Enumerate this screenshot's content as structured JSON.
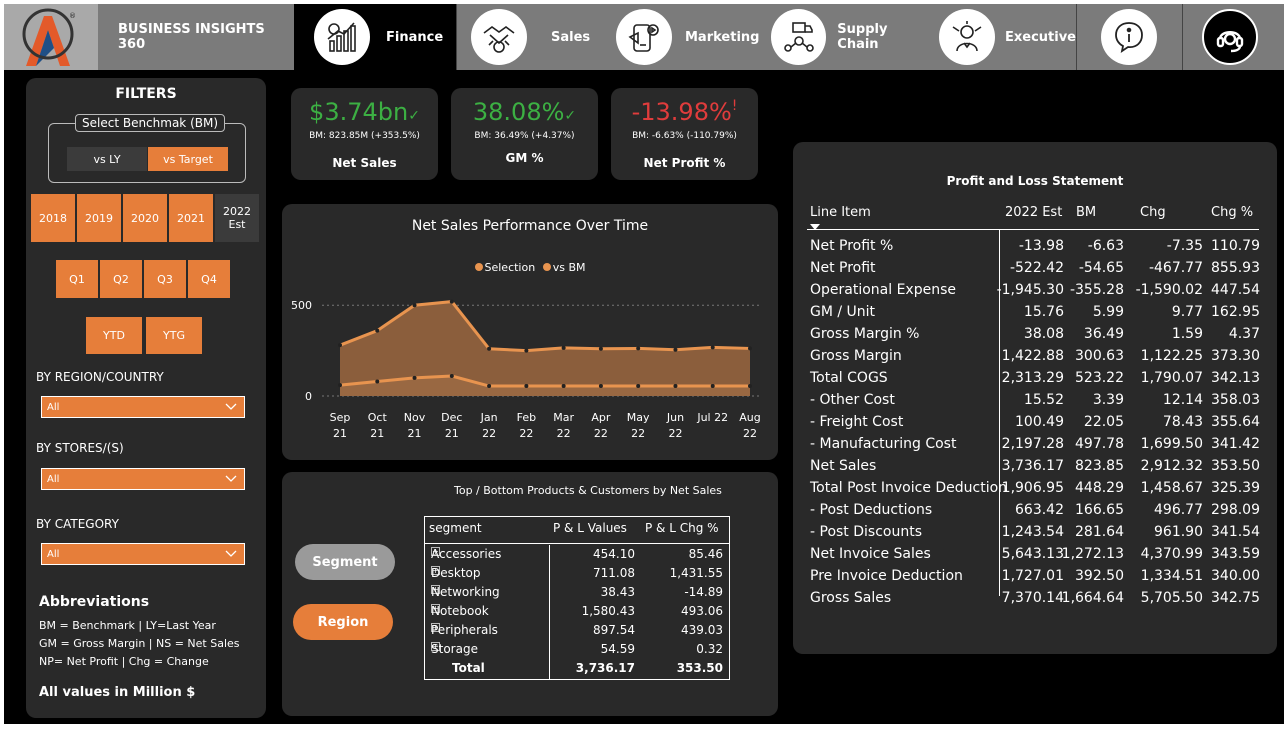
{
  "header": {
    "brand": "BUSINESS INSIGHTS 360",
    "tabs": [
      {
        "label": "Finance",
        "icon": "finance-chart-icon"
      },
      {
        "label": "Sales",
        "icon": "handshake-icon"
      },
      {
        "label": "Marketing",
        "icon": "marketing-icon"
      },
      {
        "label": "Supply Chain",
        "icon": "supply-chain-icon"
      },
      {
        "label": "Executive",
        "icon": "executive-icon"
      }
    ],
    "active_tab": "Finance",
    "colors": {
      "nav_bg": "#7b7b7b",
      "accent": "#e67e3a"
    }
  },
  "filters": {
    "title": "FILTERS",
    "benchmark_label": "Select Benchmak (BM)",
    "benchmark_options": [
      "vs LY",
      "vs Target"
    ],
    "benchmark_selected": "vs Target",
    "years": [
      "2018",
      "2019",
      "2020",
      "2021",
      "2022 Est"
    ],
    "quarters": [
      "Q1",
      "Q2",
      "Q3",
      "Q4"
    ],
    "periods": [
      "YTD",
      "YTG"
    ],
    "region_label": "BY REGION/COUNTRY",
    "region_value": "All",
    "stores_label": "BY STORES/(S)",
    "stores_value": "All",
    "category_label": "BY CATEGORY",
    "category_value": "All"
  },
  "abbreviations": {
    "title": "Abbreviations",
    "lines": [
      "BM = Benchmark | LY=Last Year",
      "GM = Gross Margin | NS = Net Sales",
      "NP= Net Profit | Chg = Change"
    ],
    "note": "All values in Million $"
  },
  "kpis": [
    {
      "value": "$3.74bn",
      "mark": "✓",
      "bm": "BM: 823.85M (+353.5%)",
      "label": "Net Sales",
      "color": "#3cb043"
    },
    {
      "value": "38.08%",
      "mark": "✓",
      "bm": "BM: 36.49% (+4.37%)",
      "label": "GM %",
      "color": "#3cb043"
    },
    {
      "value": "-13.98%",
      "mark": "!",
      "bm": "BM: -6.63% (-110.79%)",
      "label": "Net Profit %",
      "color": "#e03c3c"
    }
  ],
  "chart_data": {
    "type": "area",
    "title": "Net Sales Performance Over Time",
    "x": [
      "Sep 21",
      "Oct 21",
      "Nov 21",
      "Dec 21",
      "Jan 22",
      "Feb 22",
      "Mar 22",
      "Apr 22",
      "May 22",
      "Jun 22",
      "Jul 22",
      "Aug 22"
    ],
    "x_ticks": [
      [
        "Sep",
        "21"
      ],
      [
        "Oct",
        "21"
      ],
      [
        "Nov",
        "21"
      ],
      [
        "Dec",
        "21"
      ],
      [
        "Jan",
        "22"
      ],
      [
        "Feb",
        "22"
      ],
      [
        "Mar",
        "22"
      ],
      [
        "Apr",
        "22"
      ],
      [
        "May",
        "22"
      ],
      [
        "Jun",
        "22"
      ],
      [
        "Jul 22",
        ""
      ],
      [
        "Aug",
        "22"
      ]
    ],
    "series": [
      {
        "name": "Selection",
        "values": [
          280,
          360,
          500,
          520,
          260,
          250,
          265,
          260,
          262,
          255,
          268,
          262
        ],
        "color": "#e8944f"
      },
      {
        "name": "vs BM",
        "values": [
          60,
          80,
          100,
          110,
          55,
          55,
          55,
          55,
          55,
          55,
          55,
          55
        ],
        "color": "#e8944f"
      }
    ],
    "y_ticks": [
      0,
      500
    ],
    "ylim": [
      0,
      650
    ],
    "legend": "top-center"
  },
  "products": {
    "title": "Top / Bottom Products & Customers by Net Sales",
    "buttons": [
      "Segment",
      "Region"
    ],
    "columns": [
      "segment",
      "P & L Values",
      "P & L Chg %"
    ],
    "rows": [
      [
        "Accessories",
        "454.10",
        "85.46"
      ],
      [
        "Desktop",
        "711.08",
        "1,431.55"
      ],
      [
        "Networking",
        "38.43",
        "-14.89"
      ],
      [
        "Notebook",
        "1,580.43",
        "493.06"
      ],
      [
        "Peripherals",
        "897.54",
        "439.03"
      ],
      [
        "Storage",
        "54.59",
        "0.32"
      ]
    ],
    "total": [
      "Total",
      "3,736.17",
      "353.50"
    ]
  },
  "pnl": {
    "title": "Profit and Loss Statement",
    "columns": [
      "Line Item",
      "2022 Est",
      "BM",
      "Chg",
      "Chg %"
    ],
    "rows": [
      [
        "Net Profit %",
        "-13.98",
        "-6.63",
        "-7.35",
        "110.79"
      ],
      [
        "Net Profit",
        "-522.42",
        "-54.65",
        "-467.77",
        "855.93"
      ],
      [
        "Operational Expense",
        "-1,945.30",
        "-355.28",
        "-1,590.02",
        "447.54"
      ],
      [
        "GM / Unit",
        "15.76",
        "5.99",
        "9.77",
        "162.95"
      ],
      [
        "Gross Margin %",
        "38.08",
        "36.49",
        "1.59",
        "4.37"
      ],
      [
        "Gross Margin",
        "1,422.88",
        "300.63",
        "1,122.25",
        "373.30"
      ],
      [
        "Total COGS",
        "2,313.29",
        "523.22",
        "1,790.07",
        "342.13"
      ],
      [
        "- Other Cost",
        "15.52",
        "3.39",
        "12.14",
        "358.03"
      ],
      [
        "- Freight Cost",
        "100.49",
        "22.05",
        "78.43",
        "355.64"
      ],
      [
        "- Manufacturing Cost",
        "2,197.28",
        "497.78",
        "1,699.50",
        "341.42"
      ],
      [
        "Net Sales",
        "3,736.17",
        "823.85",
        "2,912.32",
        "353.50"
      ],
      [
        "Total Post Invoice Deduction",
        "1,906.95",
        "448.29",
        "1,458.67",
        "325.39"
      ],
      [
        "- Post Deductions",
        "663.42",
        "166.65",
        "496.77",
        "298.09"
      ],
      [
        "- Post Discounts",
        "1,243.54",
        "281.64",
        "961.90",
        "341.54"
      ],
      [
        "Net Invoice Sales",
        "5,643.13",
        "1,272.13",
        "4,370.99",
        "343.59"
      ],
      [
        "Pre Invoice Deduction",
        "1,727.01",
        "392.50",
        "1,334.51",
        "340.00"
      ],
      [
        "Gross Sales",
        "7,370.14",
        "1,664.64",
        "5,705.50",
        "342.75"
      ]
    ]
  }
}
